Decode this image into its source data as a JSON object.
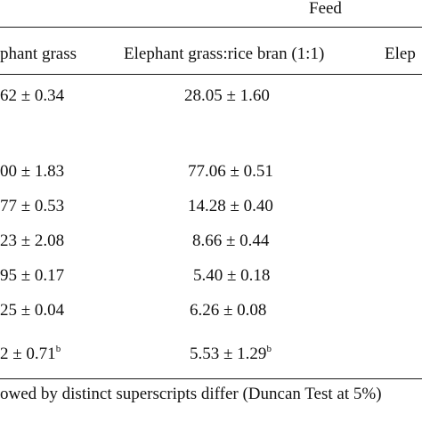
{
  "table": {
    "group_header": "Feed",
    "columns": [
      "phant grass",
      "Elephant grass:rice bran (1:1)",
      "Elep"
    ],
    "rows": [
      {
        "col1": "62 ± 0.34",
        "col2": "28.05  ± 1.60"
      },
      {
        "col1": "00 ± 1.83",
        "col2": "77.06 ± 0.51"
      },
      {
        "col1": "77 ± 0.53",
        "col2": "14.28 ± 0.40"
      },
      {
        "col1": "23 ± 2.08",
        "col2": "8.66 ± 0.44"
      },
      {
        "col1": "95 ± 0.17",
        "col2": "5.40  ± 0.18"
      },
      {
        "col1": "25 ± 0.04",
        "col2": "6.26  ± 0.08"
      },
      {
        "col1": "2 ± 0.71",
        "col1_sup": "b",
        "col2": "5.53 ± 1.29",
        "col2_sup": "b"
      }
    ],
    "footnote": "owed by distinct superscripts differ (Duncan Test at 5%)"
  }
}
